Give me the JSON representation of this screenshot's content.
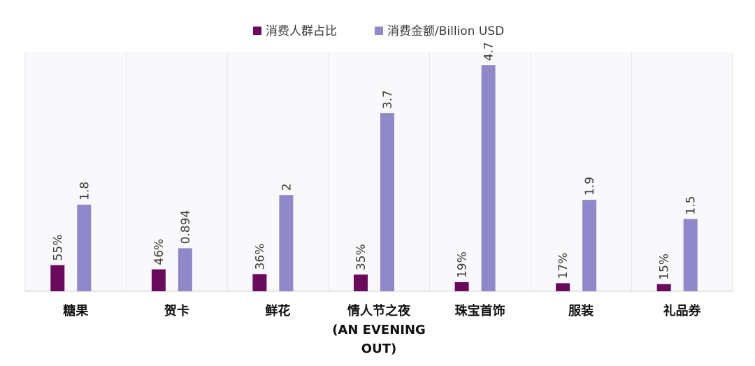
{
  "chart_data": {
    "type": "bar",
    "categories": [
      [
        "糖果"
      ],
      [
        "贺卡"
      ],
      [
        "鲜花"
      ],
      [
        "情人节之夜",
        "(AN EVENING",
        "OUT)"
      ],
      [
        "珠宝首饰"
      ],
      [
        "服装"
      ],
      [
        "礼品券"
      ]
    ],
    "series": [
      {
        "name": "消费人群占比",
        "color": "#6b0a5c",
        "values": [
          0.55,
          0.46,
          0.36,
          0.35,
          0.19,
          0.17,
          0.15
        ],
        "labels": [
          "55%",
          "46%",
          "36%",
          "35%",
          "19%",
          "17%",
          "15%"
        ]
      },
      {
        "name": "消费金额/Billion USD",
        "color": "#9088c8",
        "values": [
          1.8,
          0.894,
          2,
          3.7,
          4.7,
          1.9,
          1.5
        ],
        "labels": [
          "1.8",
          "0.894",
          "2",
          "3.7",
          "4.7",
          "1.9",
          "1.5"
        ]
      }
    ],
    "title": "",
    "xlabel": "",
    "ylabel": "",
    "legend_position": "top-center",
    "grid": "vertical separators between categories",
    "data_labels": "rotated -90 degrees above bars"
  }
}
